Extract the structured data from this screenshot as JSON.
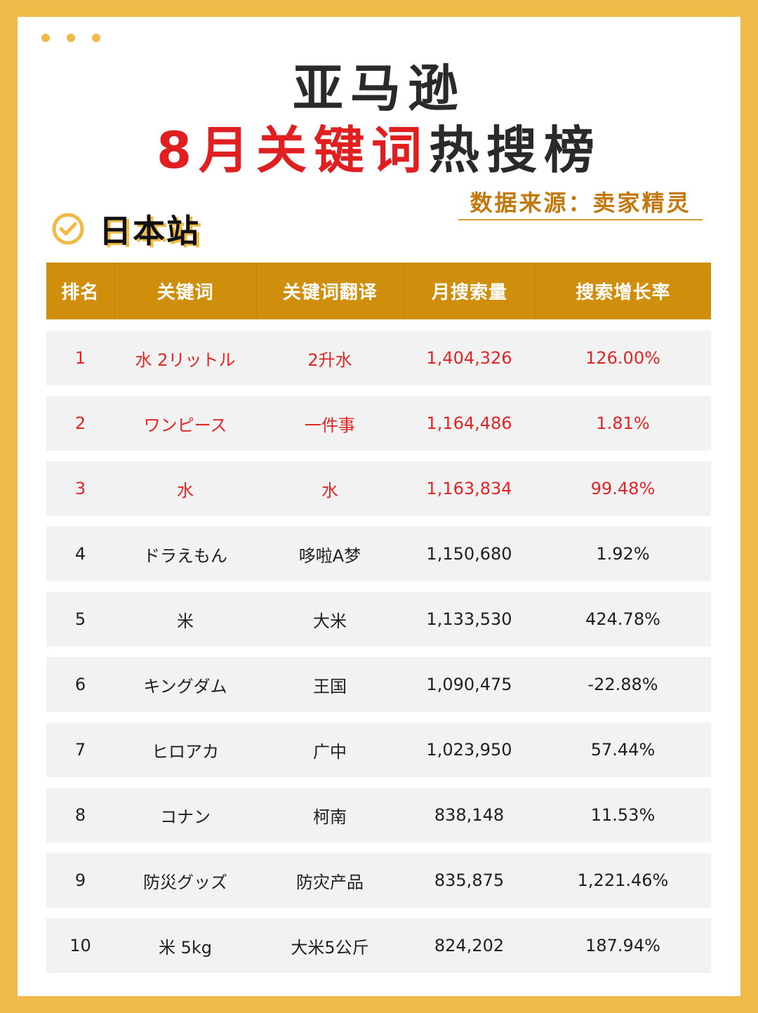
{
  "header": {
    "title_line1": "亚马逊",
    "title_line2_red": "8月关键词",
    "title_line2_dark": "热搜榜",
    "source": "数据来源：卖家精灵",
    "site": "日本站",
    "accent_color": "#efba48",
    "highlight_color": "#e02020"
  },
  "table": {
    "columns": [
      "排名",
      "关键词",
      "关键词翻译",
      "月搜索量",
      "搜索增长率"
    ],
    "rows": [
      {
        "rank": "1",
        "keyword": "水 2リットル",
        "translation": "2升水",
        "volume": "1,404,326",
        "growth": "126.00%"
      },
      {
        "rank": "2",
        "keyword": "ワンピース",
        "translation": "一件事",
        "volume": "1,164,486",
        "growth": "1.81%"
      },
      {
        "rank": "3",
        "keyword": "水",
        "translation": "水",
        "volume": "1,163,834",
        "growth": "99.48%"
      },
      {
        "rank": "4",
        "keyword": "ドラえもん",
        "translation": "哆啦A梦",
        "volume": "1,150,680",
        "growth": "1.92%"
      },
      {
        "rank": "5",
        "keyword": "米",
        "translation": "大米",
        "volume": "1,133,530",
        "growth": "424.78%"
      },
      {
        "rank": "6",
        "keyword": "キングダム",
        "translation": "王国",
        "volume": "1,090,475",
        "growth": "-22.88%"
      },
      {
        "rank": "7",
        "keyword": "ヒロアカ",
        "translation": "广中",
        "volume": "1,023,950",
        "growth": "57.44%"
      },
      {
        "rank": "8",
        "keyword": "コナン",
        "translation": "柯南",
        "volume": "838,148",
        "growth": "11.53%"
      },
      {
        "rank": "9",
        "keyword": "防災グッズ",
        "translation": "防灾产品",
        "volume": "835,875",
        "growth": "1,221.46%"
      },
      {
        "rank": "10",
        "keyword": "米 5kg",
        "translation": "大米5公斤",
        "volume": "824,202",
        "growth": "187.94%"
      }
    ]
  }
}
